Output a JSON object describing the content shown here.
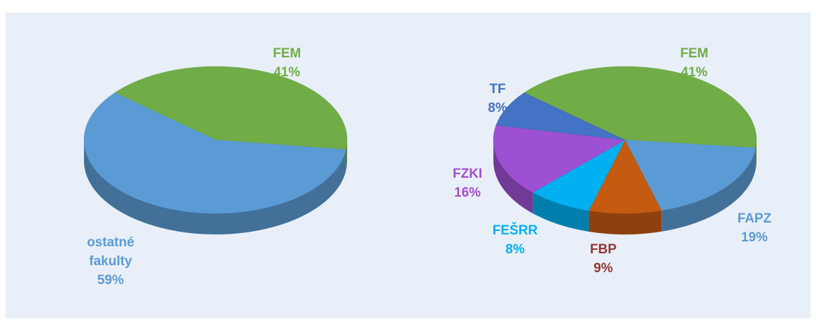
{
  "chart_data": [
    {
      "type": "pie",
      "categories": [
        "FEM",
        "ostatné fakulty"
      ],
      "values": [
        41,
        59
      ],
      "value_labels": [
        "41%",
        "59%"
      ],
      "colors": [
        "#70ad47",
        "#5b9bd5"
      ],
      "label_colors": [
        "#70ad47",
        "#5b9bd5"
      ]
    },
    {
      "type": "pie",
      "categories": [
        "FEM",
        "FAPZ",
        "FBP",
        "FEŠRR",
        "FZKI",
        "TF"
      ],
      "values": [
        41,
        19,
        9,
        8,
        16,
        8
      ],
      "value_labels": [
        "41%",
        "19%",
        "9%",
        "8%",
        "16%",
        "8%"
      ],
      "colors": [
        "#70ad47",
        "#5b9bd5",
        "#c55a11",
        "#00b0f0",
        "#9e50d2",
        "#4472c4"
      ],
      "label_colors": [
        "#70ad47",
        "#5b9bd5",
        "#943634",
        "#00b0f0",
        "#a64dcf",
        "#4472c4"
      ]
    }
  ]
}
